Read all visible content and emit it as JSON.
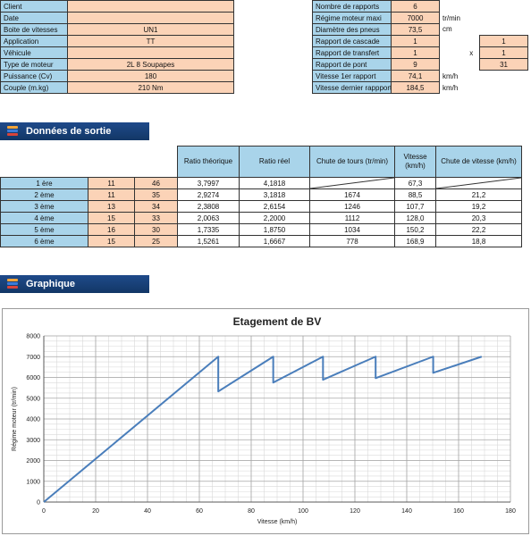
{
  "inputs_left": [
    {
      "label": "Client",
      "value": ""
    },
    {
      "label": "Date",
      "value": ""
    },
    {
      "label": "Boite de vitesses",
      "value": "UN1"
    },
    {
      "label": "Application",
      "value": "TT"
    },
    {
      "label": "Véhicule",
      "value": ""
    },
    {
      "label": "Type de moteur",
      "value": "2L 8 Soupapes"
    },
    {
      "label": "Puissance (Cv)",
      "value": "180"
    },
    {
      "label": "Couple (m.kg)",
      "value": "210 Nm"
    }
  ],
  "inputs_right": [
    {
      "label": "Nombre de rapports",
      "value": "6",
      "unit": "",
      "extra_sym": "",
      "extra_val": ""
    },
    {
      "label": "Régime moteur maxi",
      "value": "7000",
      "unit": "tr/min",
      "extra_sym": "",
      "extra_val": ""
    },
    {
      "label": "Diamètre des pneus",
      "value": "73,5",
      "unit": "cm",
      "extra_sym": "",
      "extra_val": ""
    },
    {
      "label": "Rapport de cascade",
      "value": "1",
      "unit": "",
      "extra_sym": "",
      "extra_val": "1"
    },
    {
      "label": "Rapport de transfert",
      "value": "1",
      "unit": "",
      "extra_sym": "x",
      "extra_val": "1"
    },
    {
      "label": "Rapport de pont",
      "value": "9",
      "unit": "",
      "extra_sym": "",
      "extra_val": "31"
    },
    {
      "label": "Vitesse 1er rapport",
      "value": "74,1",
      "unit": "km/h",
      "extra_sym": "",
      "extra_val": ""
    },
    {
      "label": "Vitesse dernier rappport",
      "value": "184,5",
      "unit": "km/h",
      "extra_sym": "",
      "extra_val": ""
    }
  ],
  "output": {
    "title": "Données de sortie",
    "headers": {
      "ratio_theorique": "Ratio théorique",
      "ratio_reel": "Ratio réel",
      "chute_tours": "Chute de tours (tr/min)",
      "vitesse": "Vitesse (km/h)",
      "chute_vitesse": "Chute de vitesse (km/h)"
    },
    "rows": [
      {
        "gear": "1 ère",
        "a": "11",
        "b": "46",
        "ratio_theorique": "3,7997",
        "ratio_reel": "4,1818",
        "chute_tours": "",
        "vitesse": "67,3",
        "chute_vitesse": ""
      },
      {
        "gear": "2 ème",
        "a": "11",
        "b": "35",
        "ratio_theorique": "2,9274",
        "ratio_reel": "3,1818",
        "chute_tours": "1674",
        "vitesse": "88,5",
        "chute_vitesse": "21,2"
      },
      {
        "gear": "3 ème",
        "a": "13",
        "b": "34",
        "ratio_theorique": "2,3808",
        "ratio_reel": "2,6154",
        "chute_tours": "1246",
        "vitesse": "107,7",
        "chute_vitesse": "19,2"
      },
      {
        "gear": "4 ème",
        "a": "15",
        "b": "33",
        "ratio_theorique": "2,0063",
        "ratio_reel": "2,2000",
        "chute_tours": "1112",
        "vitesse": "128,0",
        "chute_vitesse": "20,3"
      },
      {
        "gear": "5 ème",
        "a": "16",
        "b": "30",
        "ratio_theorique": "1,7335",
        "ratio_reel": "1,8750",
        "chute_tours": "1034",
        "vitesse": "150,2",
        "chute_vitesse": "22,2"
      },
      {
        "gear": "6 ème",
        "a": "15",
        "b": "25",
        "ratio_theorique": "1,5261",
        "ratio_reel": "1,6667",
        "chute_tours": "778",
        "vitesse": "168,9",
        "chute_vitesse": "18,8"
      }
    ]
  },
  "graph_section": {
    "title": "Graphique"
  },
  "colors": {
    "label_cells": "#a9d4ea",
    "value_cells": "#fbd3b7",
    "banner": "#1f4a8a",
    "series": "#4a7ebb"
  },
  "chart_data": {
    "type": "line",
    "title": "Etagement de BV",
    "xlabel": "Vitesse (km/h)",
    "ylabel": "Régime moteur (tr/min)",
    "xlim": [
      0,
      180
    ],
    "ylim": [
      0,
      8000
    ],
    "x_ticks": [
      0,
      20,
      40,
      60,
      80,
      100,
      120,
      140,
      160,
      180
    ],
    "y_ticks": [
      0,
      1000,
      2000,
      3000,
      4000,
      5000,
      6000,
      7000,
      8000
    ],
    "grid": true,
    "legend": "none",
    "series": [
      {
        "x": [
          0,
          67.3,
          67.3,
          88.5,
          88.5,
          107.7,
          107.7,
          128.0,
          128.0,
          150.2,
          150.2,
          168.9
        ],
        "y": [
          0,
          7000,
          5326,
          7000,
          5754,
          7000,
          5888,
          7000,
          5966,
          7000,
          6222,
          7000
        ]
      }
    ]
  }
}
